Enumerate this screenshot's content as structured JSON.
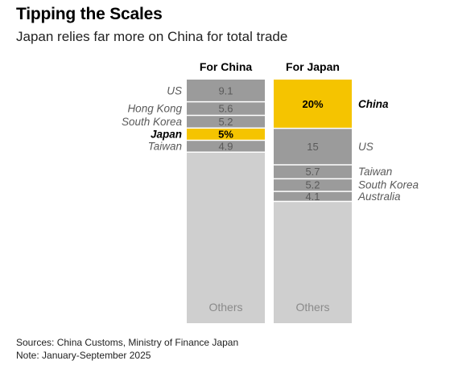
{
  "title": "Tipping the Scales",
  "subtitle": "Japan relies far more on China for total trade",
  "sources": "Sources: China Customs, Ministry of Finance Japan",
  "note": "Note: January-September 2025",
  "colors": {
    "highlight": "#f5c400",
    "segment": "#9b9b9b",
    "others": "#cfcfcf",
    "divider": "#ffffff",
    "segment_text": "#5a5a5a",
    "others_text": "#8a8a8a",
    "label_text": "#5a5a5a"
  },
  "chart_data": {
    "type": "bar",
    "stacked": true,
    "percent": true,
    "ylim": [
      0,
      100
    ],
    "columns": [
      {
        "name": "For China",
        "segments": [
          {
            "label": "US",
            "value": 9.1,
            "display": "9.1",
            "highlight": false
          },
          {
            "label": "Hong Kong",
            "value": 5.6,
            "display": "5.6",
            "highlight": false
          },
          {
            "label": "South Korea",
            "value": 5.2,
            "display": "5.2",
            "highlight": false
          },
          {
            "label": "Japan",
            "value": 5,
            "display": "5%",
            "highlight": true
          },
          {
            "label": "Taiwan",
            "value": 4.9,
            "display": "4.9",
            "highlight": false
          },
          {
            "label": "Others",
            "value": 70.2,
            "display": "Others",
            "others": true
          }
        ]
      },
      {
        "name": "For Japan",
        "segments": [
          {
            "label": "China",
            "value": 20,
            "display": "20%",
            "highlight": true
          },
          {
            "label": "US",
            "value": 15,
            "display": "15",
            "highlight": false
          },
          {
            "label": "Taiwan",
            "value": 5.7,
            "display": "5.7",
            "highlight": false
          },
          {
            "label": "South Korea",
            "value": 5.2,
            "display": "5.2",
            "highlight": false
          },
          {
            "label": "Australia",
            "value": 4.1,
            "display": "4.1",
            "highlight": false
          },
          {
            "label": "Others",
            "value": 50,
            "display": "Others",
            "others": true
          }
        ]
      }
    ]
  }
}
